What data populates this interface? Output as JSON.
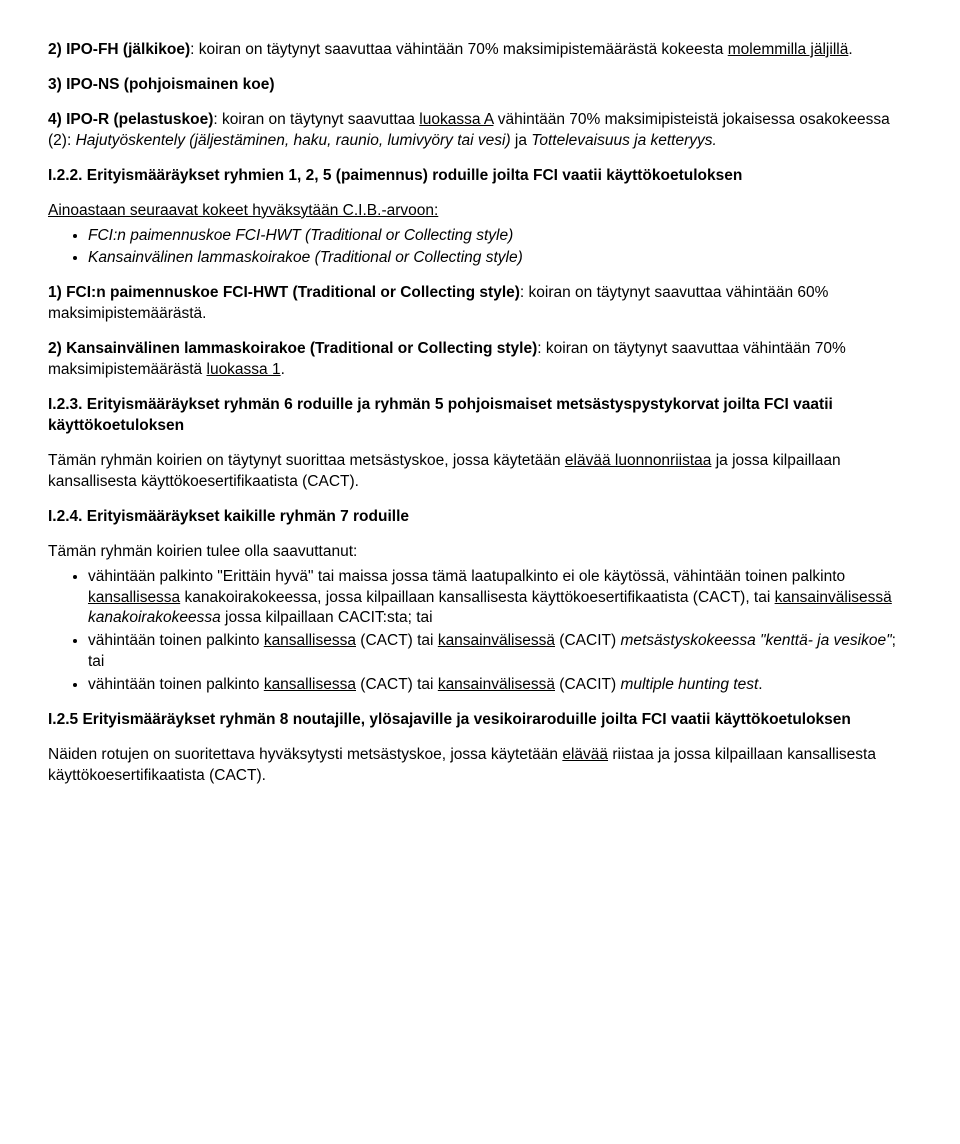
{
  "p1": {
    "lead": "2) IPO-FH (jälkikoe)",
    "rest": ": koiran on täytynyt saavuttaa vähintään 70% maksimipistemäärästä kokeesta ",
    "tail": "molemmilla jäljillä",
    "dot": "."
  },
  "p2": {
    "lead": "3) IPO-NS (pohjoismainen koe)"
  },
  "p3": {
    "lead": "4) IPO-R (pelastuskoe)",
    "a": ": koiran on täytynyt saavuttaa ",
    "u1": "luokassa A",
    "b": " vähintään 70% maksimipisteistä jokaisessa osakokeessa (2): ",
    "i1": "Hajutyöskentely (jäljestäminen, haku, raunio, lumivyöry tai vesi) ",
    "c": "ja ",
    "i2": "Tottelevaisuus ja ketteryys."
  },
  "h1": "I.2.2. Erityismääräykset ryhmien 1, 2, 5 (paimennus) roduille joilta FCI vaatii käyttökoetuloksen",
  "p4intro": "Ainoastaan seuraavat kokeet hyväksytään C.I.B.-arvoon:",
  "bullets1": [
    "FCI:n paimennuskoe FCI-HWT (Traditional or Collecting style)",
    "Kansainvälinen lammaskoirakoe (Traditional or Collecting style)"
  ],
  "p5": {
    "lead": "1) FCI:n paimennuskoe FCI-HWT (Traditional or Collecting style)",
    "rest": ": koiran on täytynyt saavuttaa vähintään 60% maksimipistemäärästä."
  },
  "p6": {
    "lead": "2) Kansainvälinen lammaskoirakoe (Traditional or Collecting style)",
    "a": ": koiran on täytynyt saavuttaa vähintään 70% maksimipistemäärästä ",
    "u1": "luokassa 1",
    "dot": "."
  },
  "h2": "I.2.3. Erityismääräykset ryhmän 6 roduille ja ryhmän 5 pohjoismaiset metsästyspystykorvat joilta FCI vaatii käyttökoetuloksen",
  "p7": {
    "a": "Tämän ryhmän koirien on täytynyt suorittaa metsästyskoe, jossa käytetään ",
    "u1": "elävää luonnonriistaa",
    "b": " ja jossa kilpaillaan kansallisesta käyttökoesertifikaatista (CACT)."
  },
  "h3": "I.2.4. Erityismääräykset kaikille ryhmän 7 roduille",
  "p8intro": "Tämän ryhmän koirien tulee olla saavuttanut:",
  "b2_1": {
    "a": "vähintään palkinto \"Erittäin hyvä\" tai maissa jossa tämä laatupalkinto ei ole käytössä, vähintään toinen palkinto ",
    "u1": "kansallisessa",
    "b": " kanakoirakokeessa, jossa kilpaillaan kansallisesta käyttökoesertifikaatista (CACT), tai ",
    "u2": "kansainvälisessä",
    "c": " ",
    "i1": "kanakoirakokeessa",
    "d": " jossa kilpaillaan CACIT:sta; tai"
  },
  "b2_2": {
    "a": "vähintään toinen palkinto ",
    "u1": "kansallisessa",
    "b": " (CACT) tai ",
    "u2": "kansainvälisessä",
    "c": " (CACIT) ",
    "i1": "metsästyskokeessa \"kenttä- ja vesikoe\"",
    "d": "; tai"
  },
  "b2_3": {
    "a": "vähintään toinen palkinto ",
    "u1": "kansallisessa",
    "b": " (CACT) tai ",
    "u2": "kansainvälisessä",
    "c": " (CACIT) ",
    "i1": "multiple hunting test",
    "d": "."
  },
  "h4": "I.2.5 Erityismääräykset ryhmän 8 noutajille, ylösajaville ja vesikoiraroduille joilta FCI vaatii käyttökoetuloksen",
  "p9": {
    "a": "Näiden rotujen on suoritettava hyväksytysti metsästyskoe, jossa käytetään ",
    "u1": "elävää",
    "b": " riistaa ja jossa kilpaillaan kansallisesta käyttökoesertifikaatista (CACT)."
  }
}
